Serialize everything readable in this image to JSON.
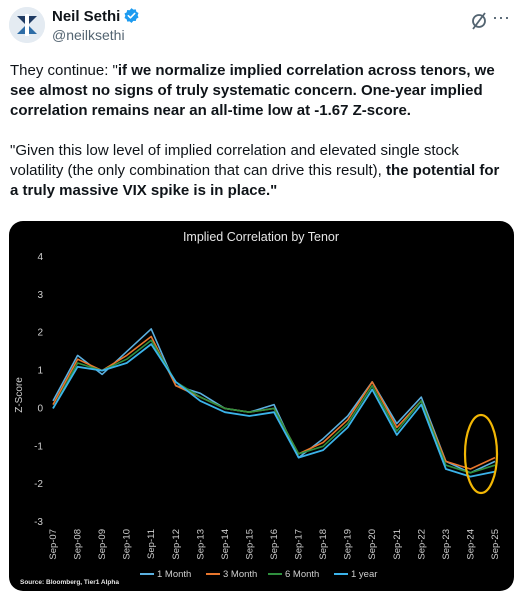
{
  "author": {
    "name": "Neil Sethi",
    "handle": "@neilksethi",
    "verified_icon": "verified-badge-icon",
    "avatar_icon": "logo-avatar-icon"
  },
  "post": {
    "p1_pre": "They continue: \"",
    "p1_bold": "if we normalize implied correlation across tenors, we see almost no signs of truly systematic concern.  One-year implied correlation remains near an all-time low at -1.67 Z-score.",
    "p2_pre": "\"Given this low level of implied correlation and elevated single stock volatility (the only combination that can drive this result), ",
    "p2_bold": "the potential for a truly massive VIX spike is in place.\""
  },
  "colors": {
    "accent": "#1d9bf0",
    "series_1m": "#5bb0e0",
    "series_3m": "#e8762d",
    "series_6m": "#2f8f3e",
    "series_1y": "#3bb3ea",
    "highlight": "#f2b705"
  },
  "chart_data": {
    "type": "line",
    "title": "Implied Correlation by Tenor",
    "ylabel": "Z-Score",
    "xlabel": "",
    "ylim": [
      -3,
      4
    ],
    "yticks": [
      4,
      3,
      2,
      1,
      0,
      -1,
      -2,
      -3
    ],
    "x_ticks": [
      "Sep-07",
      "Sep-08",
      "Sep-09",
      "Sep-10",
      "Sep-11",
      "Sep-12",
      "Sep-13",
      "Sep-14",
      "Sep-15",
      "Sep-16",
      "Sep-17",
      "Sep-18",
      "Sep-19",
      "Sep-20",
      "Sep-21",
      "Sep-22",
      "Sep-23",
      "Sep-24",
      "Sep-25"
    ],
    "grid": false,
    "legend": "bottom",
    "source": "Source: Bloomberg, Tier1 Alpha",
    "series": [
      {
        "name": "1 Month",
        "x": [
          "Sep-07",
          "Sep-08",
          "Sep-09",
          "Sep-10",
          "Sep-11",
          "Sep-12",
          "Sep-13",
          "Sep-14",
          "Sep-15",
          "Sep-16",
          "Sep-17",
          "Sep-18",
          "Sep-19",
          "Sep-20",
          "Sep-21",
          "Sep-22",
          "Sep-23",
          "Sep-24",
          "Sep-25"
        ],
        "values": [
          0.2,
          1.4,
          0.9,
          1.5,
          2.1,
          0.6,
          0.4,
          0.0,
          -0.1,
          0.1,
          -1.3,
          -0.8,
          -0.2,
          0.7,
          -0.4,
          0.3,
          -1.4,
          -1.7,
          -1.4
        ]
      },
      {
        "name": "3 Month",
        "x": [
          "Sep-07",
          "Sep-08",
          "Sep-09",
          "Sep-10",
          "Sep-11",
          "Sep-12",
          "Sep-13",
          "Sep-14",
          "Sep-15",
          "Sep-16",
          "Sep-17",
          "Sep-18",
          "Sep-19",
          "Sep-20",
          "Sep-21",
          "Sep-22",
          "Sep-23",
          "Sep-24",
          "Sep-25"
        ],
        "values": [
          0.1,
          1.3,
          1.0,
          1.4,
          1.9,
          0.6,
          0.3,
          0.0,
          -0.1,
          0.0,
          -1.2,
          -0.9,
          -0.3,
          0.7,
          -0.5,
          0.2,
          -1.4,
          -1.6,
          -1.3
        ]
      },
      {
        "name": "6 Month",
        "x": [
          "Sep-07",
          "Sep-08",
          "Sep-09",
          "Sep-10",
          "Sep-11",
          "Sep-12",
          "Sep-13",
          "Sep-14",
          "Sep-15",
          "Sep-16",
          "Sep-17",
          "Sep-18",
          "Sep-19",
          "Sep-20",
          "Sep-21",
          "Sep-22",
          "Sep-23",
          "Sep-24",
          "Sep-25"
        ],
        "values": [
          0.0,
          1.2,
          1.0,
          1.3,
          1.8,
          0.7,
          0.3,
          0.0,
          -0.1,
          0.0,
          -1.2,
          -1.0,
          -0.4,
          0.6,
          -0.6,
          0.2,
          -1.5,
          -1.7,
          -1.5
        ]
      },
      {
        "name": "1 year",
        "x": [
          "Sep-07",
          "Sep-08",
          "Sep-09",
          "Sep-10",
          "Sep-11",
          "Sep-12",
          "Sep-13",
          "Sep-14",
          "Sep-15",
          "Sep-16",
          "Sep-17",
          "Sep-18",
          "Sep-19",
          "Sep-20",
          "Sep-21",
          "Sep-22",
          "Sep-23",
          "Sep-24",
          "Sep-25"
        ],
        "values": [
          0.0,
          1.1,
          1.0,
          1.2,
          1.7,
          0.7,
          0.2,
          -0.1,
          -0.2,
          -0.1,
          -1.3,
          -1.1,
          -0.5,
          0.5,
          -0.7,
          0.1,
          -1.6,
          -1.8,
          -1.67
        ]
      }
    ]
  }
}
